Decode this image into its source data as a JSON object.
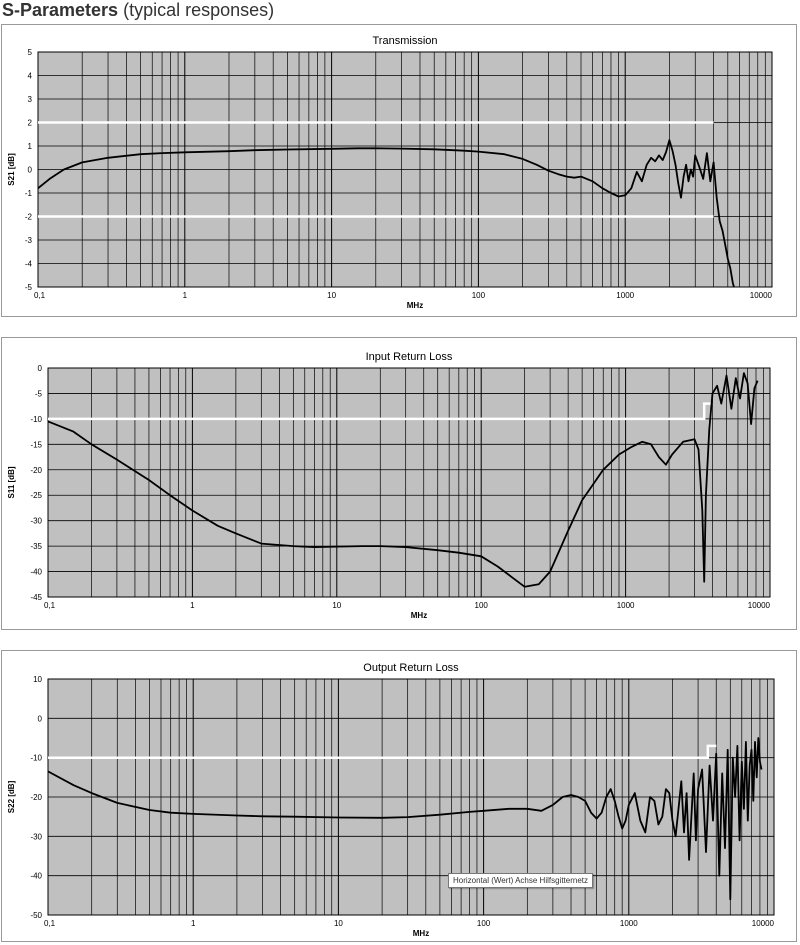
{
  "page": {
    "title_bold": "S-Parameters",
    "title_rest": " (typical responses)",
    "tooltip": "Horizontal (Wert) Achse Hilfsgitternetz"
  },
  "colors": {
    "plot_bg": "#c0c0c0",
    "grid": "#000000",
    "spec_line": "#ffffff",
    "trace": "#000000"
  },
  "chart_data": [
    {
      "type": "line",
      "title": "Transmission",
      "xlabel": "MHz",
      "ylabel": "S21 [dB]",
      "x_scale": "log",
      "xlim": [
        0.1,
        10000
      ],
      "ylim": [
        -5,
        5
      ],
      "y_ticks": [
        5,
        4,
        3,
        2,
        1,
        0,
        -1,
        -2,
        -3,
        -4,
        -5
      ],
      "x_tick_labels": [
        "0,1",
        "1",
        "10",
        "100",
        "1000",
        "10000"
      ],
      "grid": true,
      "spec_lines": [
        {
          "x": [
            0.1,
            4000
          ],
          "y": [
            2,
            2
          ]
        },
        {
          "x": [
            0.1,
            4000
          ],
          "y": [
            -2,
            -2
          ]
        }
      ],
      "series": [
        {
          "x": [
            0.1,
            0.12,
            0.15,
            0.2,
            0.3,
            0.5,
            0.7,
            1,
            2,
            3,
            5,
            10,
            15,
            20,
            30,
            50,
            80,
            100,
            150,
            200,
            250,
            300,
            350,
            400,
            450,
            500,
            600,
            700,
            800,
            900,
            1000,
            1100,
            1200,
            1300,
            1400,
            1500,
            1600,
            1700,
            1800,
            1900,
            2000,
            2100,
            2200,
            2300,
            2400,
            2500,
            2600,
            2700,
            2800,
            2900,
            3000,
            3200,
            3400,
            3600,
            3800,
            4000,
            4200,
            4400,
            4600,
            4800,
            5000,
            5200,
            5400,
            5500
          ],
          "y": [
            -0.8,
            -0.4,
            0.0,
            0.3,
            0.5,
            0.65,
            0.7,
            0.73,
            0.78,
            0.82,
            0.85,
            0.88,
            0.9,
            0.9,
            0.89,
            0.86,
            0.8,
            0.76,
            0.65,
            0.45,
            0.2,
            -0.05,
            -0.2,
            -0.3,
            -0.35,
            -0.3,
            -0.5,
            -0.8,
            -1.0,
            -1.15,
            -1.1,
            -0.8,
            -0.1,
            -0.5,
            0.2,
            0.5,
            0.35,
            0.6,
            0.4,
            0.75,
            1.25,
            0.8,
            0.2,
            -0.6,
            -1.2,
            -0.3,
            0.2,
            -0.5,
            0.0,
            -0.3,
            0.6,
            0.1,
            -0.4,
            0.7,
            -0.5,
            0.3,
            -1.2,
            -2.2,
            -2.6,
            -3.2,
            -3.8,
            -4.2,
            -4.8,
            -5.0
          ]
        }
      ]
    },
    {
      "type": "line",
      "title": "Input Return Loss",
      "xlabel": "MHz",
      "ylabel": "S11 [dB]",
      "x_scale": "log",
      "xlim": [
        0.1,
        10000
      ],
      "ylim": [
        -45,
        0
      ],
      "y_ticks": [
        0,
        -5,
        -10,
        -15,
        -20,
        -25,
        -30,
        -35,
        -40,
        -45
      ],
      "x_tick_labels": [
        "0,1",
        "1",
        "10",
        "100",
        "1000",
        "10000"
      ],
      "grid": true,
      "spec_lines": [
        {
          "x": [
            0.1,
            3500,
            3500,
            4000
          ],
          "y": [
            -10,
            -10,
            -7,
            -7
          ]
        }
      ],
      "series": [
        {
          "x": [
            0.1,
            0.15,
            0.2,
            0.3,
            0.5,
            0.7,
            1,
            1.5,
            2,
            3,
            5,
            7,
            10,
            15,
            20,
            30,
            50,
            70,
            100,
            130,
            170,
            200,
            250,
            300,
            400,
            500,
            700,
            900,
            1100,
            1300,
            1500,
            1700,
            1900,
            2100,
            2500,
            3000,
            3200,
            3400,
            3500,
            3600,
            3800,
            4000,
            4300,
            4600,
            5000,
            5400,
            5800,
            6200,
            6600,
            7000,
            7400,
            7800,
            8200
          ],
          "y": [
            -10.5,
            -12.5,
            -15,
            -18,
            -22,
            -25,
            -28,
            -31,
            -32.5,
            -34.5,
            -35,
            -35.2,
            -35.1,
            -35,
            -35,
            -35.2,
            -35.8,
            -36.3,
            -37,
            -39,
            -41.5,
            -43,
            -42.5,
            -40,
            -32,
            -26,
            -20,
            -17,
            -15.5,
            -14.5,
            -15,
            -17.5,
            -19,
            -17,
            -14.5,
            -14,
            -16,
            -28,
            -42,
            -25,
            -12,
            -5,
            -3.5,
            -7,
            -1.5,
            -8,
            -2,
            -6,
            -1,
            -3,
            -11,
            -4,
            -2.5
          ]
        }
      ]
    },
    {
      "type": "line",
      "title": "Output Return Loss",
      "xlabel": "MHz",
      "ylabel": "S22 [dB]",
      "x_scale": "log",
      "xlim": [
        0.1,
        10000
      ],
      "ylim": [
        -50,
        10
      ],
      "y_ticks": [
        10,
        0,
        -10,
        -20,
        -30,
        -40,
        -50
      ],
      "x_tick_labels": [
        "0,1",
        "1",
        "10",
        "100",
        "1000",
        "10000"
      ],
      "grid": true,
      "spec_lines": [
        {
          "x": [
            0.1,
            3500,
            3500,
            4000
          ],
          "y": [
            -10,
            -10,
            -7,
            -7
          ]
        }
      ],
      "series": [
        {
          "x": [
            0.1,
            0.15,
            0.2,
            0.3,
            0.5,
            0.7,
            1,
            2,
            3,
            5,
            10,
            20,
            30,
            50,
            80,
            100,
            150,
            200,
            250,
            300,
            350,
            400,
            450,
            500,
            550,
            600,
            650,
            700,
            750,
            800,
            850,
            900,
            950,
            1000,
            1100,
            1200,
            1300,
            1400,
            1500,
            1600,
            1700,
            1800,
            1900,
            2000,
            2100,
            2200,
            2300,
            2400,
            2500,
            2600,
            2700,
            2800,
            2900,
            3000,
            3200,
            3400,
            3600,
            3800,
            4000,
            4200,
            4400,
            4600,
            4800,
            5000,
            5200,
            5400,
            5600,
            5800,
            6000,
            6200,
            6400,
            6600,
            6800,
            7000,
            7200,
            7400,
            7600,
            7800,
            8000,
            8200
          ],
          "y": [
            -13.5,
            -17,
            -19,
            -21.5,
            -23.3,
            -24,
            -24.3,
            -24.7,
            -24.9,
            -25,
            -25.2,
            -25.3,
            -25.1,
            -24.5,
            -23.8,
            -23.5,
            -23,
            -23,
            -23.5,
            -22,
            -20,
            -19.5,
            -20,
            -21,
            -24,
            -25.5,
            -24,
            -20,
            -18,
            -21,
            -25,
            -28,
            -26,
            -22,
            -19,
            -26,
            -29,
            -20,
            -21,
            -27,
            -25,
            -18,
            -19,
            -26,
            -30,
            -23,
            -16,
            -29,
            -19,
            -36,
            -25,
            -14,
            -31,
            -18,
            -13,
            -34,
            -12,
            -26,
            -9,
            -40,
            -14,
            -33,
            -8,
            -46,
            -10,
            -20,
            -7,
            -31,
            -11,
            -23,
            -6,
            -26,
            -12,
            -8,
            -21,
            -6,
            -15,
            -5,
            -11,
            -13
          ]
        }
      ]
    }
  ]
}
